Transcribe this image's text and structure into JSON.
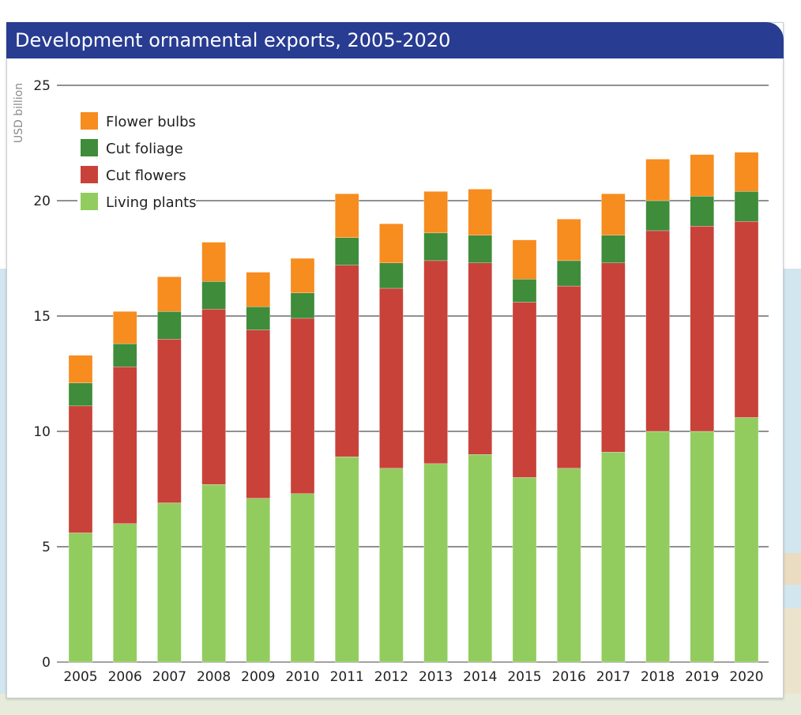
{
  "chart_data": {
    "type": "bar",
    "stacked": true,
    "title": "Development ornamental exports, 2005-2020",
    "ylabel": "USD billion",
    "xlabel": "",
    "ylim": [
      0,
      25
    ],
    "yticks": [
      0,
      5,
      10,
      15,
      20,
      25
    ],
    "grid": true,
    "legend_position": "top-left",
    "categories": [
      "2005",
      "2006",
      "2007",
      "2008",
      "2009",
      "2010",
      "2011",
      "2012",
      "2013",
      "2014",
      "2015",
      "2016",
      "2017",
      "2018",
      "2019",
      "2020"
    ],
    "series": [
      {
        "name": "Living plants",
        "color": "#92cc5e",
        "values": [
          5.6,
          6.0,
          6.9,
          7.7,
          7.1,
          7.3,
          8.9,
          8.4,
          8.6,
          9.0,
          8.0,
          8.4,
          9.1,
          10.0,
          10.0,
          10.6
        ]
      },
      {
        "name": "Cut flowers",
        "color": "#c8423a",
        "values": [
          5.5,
          6.8,
          7.1,
          7.6,
          7.3,
          7.6,
          8.3,
          7.8,
          8.8,
          8.3,
          7.6,
          7.9,
          8.2,
          8.7,
          8.9,
          8.5
        ]
      },
      {
        "name": "Cut foliage",
        "color": "#3f8c3a",
        "values": [
          1.0,
          1.0,
          1.2,
          1.2,
          1.0,
          1.1,
          1.2,
          1.1,
          1.2,
          1.2,
          1.0,
          1.1,
          1.2,
          1.3,
          1.3,
          1.3
        ]
      },
      {
        "name": "Flower bulbs",
        "color": "#f78c1f",
        "values": [
          1.2,
          1.4,
          1.5,
          1.7,
          1.5,
          1.5,
          1.9,
          1.7,
          1.8,
          2.0,
          1.7,
          1.8,
          1.8,
          1.8,
          1.8,
          1.7
        ]
      }
    ],
    "legend_order": [
      "Flower bulbs",
      "Cut foliage",
      "Cut flowers",
      "Living plants"
    ]
  }
}
